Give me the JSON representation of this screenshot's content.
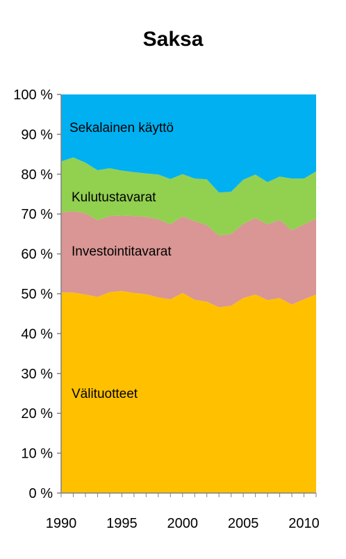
{
  "chart_data": {
    "type": "area",
    "stacked": true,
    "percent": true,
    "title": "Saksa",
    "xlabel": "",
    "ylabel": "",
    "x": [
      1990,
      1991,
      1992,
      1993,
      1994,
      1995,
      1996,
      1997,
      1998,
      1999,
      2000,
      2001,
      2002,
      2003,
      2004,
      2005,
      2006,
      2007,
      2008,
      2009,
      2010,
      2011
    ],
    "xlim": [
      1990,
      2011
    ],
    "ylim": [
      0,
      100
    ],
    "y_tick_labels": [
      "0 %",
      "10 %",
      "20 %",
      "30 %",
      "40 %",
      "50 %",
      "60 %",
      "70 %",
      "80 %",
      "90 %",
      "100 %"
    ],
    "x_tick_labels": [
      "1990",
      "1995",
      "2000",
      "2005",
      "2010"
    ],
    "x_tick_values": [
      1990,
      1995,
      2000,
      2005,
      2010
    ],
    "legend": "none",
    "grid": false,
    "series": [
      {
        "name": "Välituotteet",
        "color": "#FFC000",
        "values": [
          50.3,
          50.3,
          49.8,
          49.2,
          50.4,
          50.7,
          50.2,
          49.9,
          49.1,
          48.6,
          50.2,
          48.5,
          48.0,
          46.6,
          47.0,
          48.9,
          49.8,
          48.4,
          48.9,
          47.3,
          48.6,
          49.8
        ]
      },
      {
        "name": "Investointitavarat",
        "color": "#D99694",
        "values": [
          20.1,
          20.4,
          20.4,
          19.2,
          19.1,
          18.9,
          19.3,
          19.4,
          19.6,
          18.8,
          19.2,
          19.7,
          19.2,
          18.0,
          18.0,
          18.6,
          19.2,
          19.0,
          19.6,
          18.6,
          18.8,
          19.0
        ]
      },
      {
        "name": "Kulutustavarat",
        "color": "#92D050",
        "values": [
          12.8,
          13.5,
          12.7,
          12.6,
          12.0,
          11.3,
          11.0,
          10.9,
          11.2,
          11.4,
          10.6,
          10.7,
          11.5,
          10.8,
          10.6,
          11.1,
          10.9,
          10.6,
          10.9,
          13.0,
          11.5,
          11.9
        ]
      },
      {
        "name": "Sekalainen käyttö",
        "color": "#00B0F0",
        "values": [
          16.8,
          15.8,
          17.1,
          19.0,
          18.5,
          19.1,
          19.5,
          19.8,
          20.1,
          21.2,
          20.0,
          21.1,
          21.3,
          24.6,
          24.4,
          21.4,
          20.1,
          22.0,
          20.6,
          21.1,
          21.1,
          19.3
        ]
      }
    ]
  }
}
